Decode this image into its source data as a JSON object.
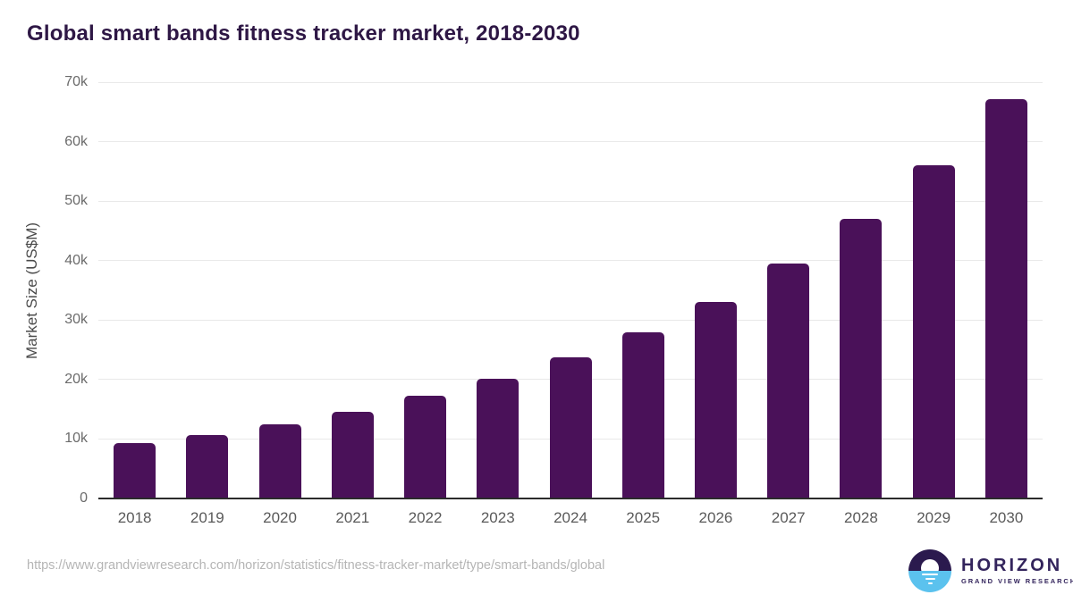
{
  "header": {
    "title": "Global smart bands fitness tracker market, 2018-2030"
  },
  "chart_data": {
    "type": "bar",
    "title": "Global smart bands fitness tracker market, 2018-2030",
    "categories": [
      "2018",
      "2019",
      "2020",
      "2021",
      "2022",
      "2023",
      "2024",
      "2025",
      "2026",
      "2027",
      "2028",
      "2029",
      "2030"
    ],
    "values": [
      9300,
      10700,
      12500,
      14600,
      17200,
      20100,
      23700,
      28000,
      33100,
      39500,
      47000,
      56100,
      67200
    ],
    "xlabel": "",
    "ylabel": "Market Size (US$M)",
    "ylim": [
      0,
      70000
    ],
    "yticks": [
      0,
      10000,
      20000,
      30000,
      40000,
      50000,
      60000,
      70000
    ],
    "ytick_labels": [
      "0",
      "10k",
      "20k",
      "30k",
      "40k",
      "50k",
      "60k",
      "70k"
    ],
    "grid": true,
    "legend_position": "none",
    "bar_color": "#4a1159",
    "title_color": "#2e1745",
    "axis_line_color": "#2b2b2b",
    "gridline_color": "#e9e9e9"
  },
  "footer": {
    "source_url": "https://www.grandviewresearch.com/horizon/statistics/fitness-tracker-market/type/smart-bands/global",
    "logo": {
      "name": "HORIZON",
      "subtitle": "GRAND VIEW RESEARCH",
      "icon": "sun-over-horizon-icon",
      "circle_top_color": "#2b1a4e",
      "circle_bottom_color": "#5bc2ee"
    }
  }
}
